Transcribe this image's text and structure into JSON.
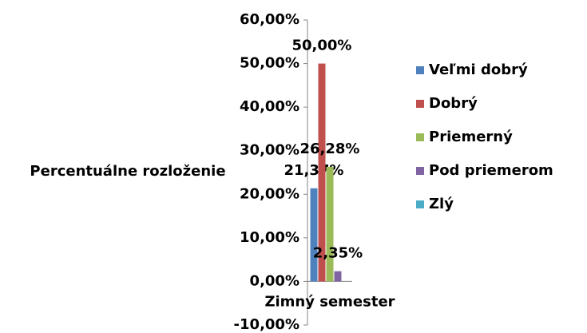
{
  "chart_data": {
    "type": "bar",
    "categories": [
      "Zimný semester"
    ],
    "y_label": "Percentuálne rozloženie",
    "series": [
      {
        "name": "Veľmi dobrý",
        "color": "#4f81bd",
        "values": [
          21.37
        ],
        "value_labels": [
          "21,37%"
        ]
      },
      {
        "name": "Dobrý",
        "color": "#c0504d",
        "values": [
          50
        ],
        "value_labels": [
          "50,00%"
        ]
      },
      {
        "name": "Priemerný",
        "color": "#9bbb59",
        "values": [
          26.28
        ],
        "value_labels": [
          "26,28%"
        ]
      },
      {
        "name": "Pod priemerom",
        "color": "#8064a2",
        "values": [
          2.35
        ],
        "value_labels": [
          "2,35%"
        ]
      },
      {
        "name": "Zlý",
        "color": "#4bacc6",
        "values": [
          0
        ],
        "value_labels": [
          null
        ]
      }
    ],
    "ylim": [
      -10,
      60
    ],
    "yticks": [
      {
        "value": -10,
        "label": "-10,00%"
      },
      {
        "value": 0,
        "label": "0,00%"
      },
      {
        "value": 10,
        "label": "10,00%"
      },
      {
        "value": 20,
        "label": "20,00%"
      },
      {
        "value": 30,
        "label": "30,00%"
      },
      {
        "value": 40,
        "label": "40,00%"
      },
      {
        "value": 50,
        "label": "50,00%"
      },
      {
        "value": 60,
        "label": "60,00%"
      }
    ],
    "legend": "right",
    "grid": false
  }
}
